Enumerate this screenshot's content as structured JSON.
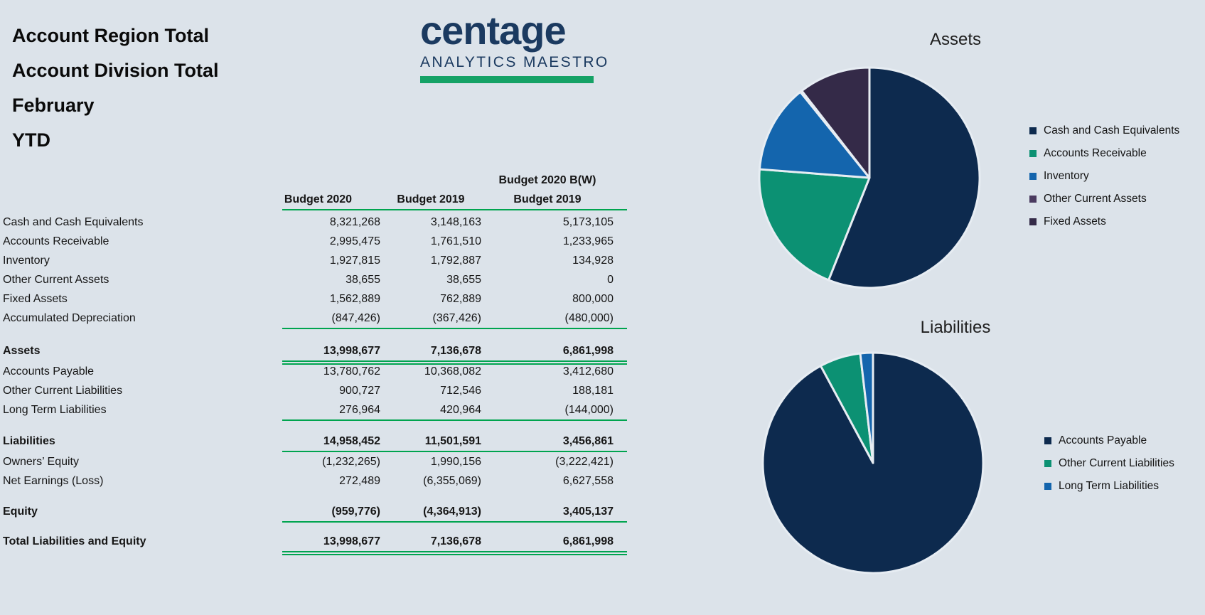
{
  "page": {
    "background": "#dce3ea"
  },
  "report": {
    "titles": [
      "Account Region Total",
      "Account Division Total",
      "February",
      "YTD"
    ]
  },
  "logo": {
    "brand": "centage",
    "subtitle": "ANALYTICS MAESTRO",
    "brand_color": "#1b3a60",
    "bar_color": "#15a266"
  },
  "table": {
    "rule_color": "#00a44f",
    "header": {
      "col1": "Budget 2020",
      "col2": "Budget 2019",
      "col3_line1": "Budget 2020 B(W)",
      "col3_line2": "Budget 2019"
    },
    "rows": [
      {
        "label": "Cash and Cash Equivalents",
        "budget_2020": "8,321,268",
        "budget_2019": "3,148,163",
        "bw_2019": "5,173,105",
        "bold": false,
        "rule_below": "none",
        "gap_before": 0
      },
      {
        "label": "Accounts Receivable",
        "budget_2020": "2,995,475",
        "budget_2019": "1,761,510",
        "bw_2019": "1,233,965",
        "bold": false,
        "rule_below": "none",
        "gap_before": 0
      },
      {
        "label": "Inventory",
        "budget_2020": "1,927,815",
        "budget_2019": "1,792,887",
        "bw_2019": "134,928",
        "bold": false,
        "rule_below": "none",
        "gap_before": 0
      },
      {
        "label": "Other Current Assets",
        "budget_2020": "38,655",
        "budget_2019": "38,655",
        "bw_2019": "0",
        "bold": false,
        "rule_below": "none",
        "gap_before": 0
      },
      {
        "label": "Fixed Assets",
        "budget_2020": "1,562,889",
        "budget_2019": "762,889",
        "bw_2019": "800,000",
        "bold": false,
        "rule_below": "none",
        "gap_before": 0
      },
      {
        "label": "Accumulated Depreciation",
        "budget_2020": "(847,426)",
        "budget_2019": "(367,426)",
        "bw_2019": "(480,000)",
        "bold": false,
        "rule_below": "single",
        "gap_before": 0
      },
      {
        "label": "Assets",
        "budget_2020": "13,998,677",
        "budget_2019": "7,136,678",
        "bw_2019": "6,861,998",
        "bold": true,
        "rule_below": "double",
        "gap_before": 19
      },
      {
        "label": "Accounts Payable",
        "budget_2020": "13,780,762",
        "budget_2019": "10,368,082",
        "bw_2019": "3,412,680",
        "bold": false,
        "rule_below": "none",
        "gap_before": 2
      },
      {
        "label": "Other Current Liabilities",
        "budget_2020": "900,727",
        "budget_2019": "712,546",
        "bw_2019": "188,181",
        "bold": false,
        "rule_below": "none",
        "gap_before": 0
      },
      {
        "label": "Long Term Liabilities",
        "budget_2020": "276,964",
        "budget_2019": "420,964",
        "bw_2019": "(144,000)",
        "bold": false,
        "rule_below": "single",
        "gap_before": 0
      },
      {
        "label": "Liabilities",
        "budget_2020": "14,958,452",
        "budget_2019": "11,501,591",
        "bw_2019": "3,456,861",
        "bold": true,
        "rule_below": "single",
        "gap_before": 17
      },
      {
        "label": "Owners’ Equity",
        "budget_2020": "(1,232,265)",
        "budget_2019": "1,990,156",
        "bw_2019": "(3,222,421)",
        "bold": false,
        "rule_below": "none",
        "gap_before": 2
      },
      {
        "label": "Net Earnings (Loss)",
        "budget_2020": "272,489",
        "budget_2019": "(6,355,069)",
        "bw_2019": "6,627,558",
        "bold": false,
        "rule_below": "none",
        "gap_before": 0
      },
      {
        "label": "Equity",
        "budget_2020": "(959,776)",
        "budget_2019": "(4,364,913)",
        "bw_2019": "3,405,137",
        "bold": true,
        "rule_below": "single",
        "gap_before": 16
      },
      {
        "label": "Total Liabilities and Equity",
        "budget_2020": "13,998,677",
        "budget_2019": "7,136,678",
        "bw_2019": "6,861,998",
        "bold": true,
        "rule_below": "double",
        "gap_before": 15
      }
    ]
  },
  "chart_data": [
    {
      "type": "pie",
      "title": "Assets",
      "labels": [
        "Cash and Cash Equivalents",
        "Accounts Receivable",
        "Inventory",
        "Other Current Assets",
        "Fixed Assets"
      ],
      "values": [
        8321268,
        2995475,
        1927815,
        38655,
        1562889
      ],
      "colors": [
        "#0d2a4e",
        "#0c9173",
        "#1465ad",
        "#4a3a5f",
        "#342a48"
      ],
      "legend_position": "right",
      "start_angle_deg": 0,
      "direction": "clockwise"
    },
    {
      "type": "pie",
      "title": "Liabilities",
      "labels": [
        "Accounts Payable",
        "Other Current Liabilities",
        "Long Term Liabilities"
      ],
      "values": [
        13780762,
        900727,
        276964
      ],
      "colors": [
        "#0d2a4e",
        "#0c9173",
        "#1465ad"
      ],
      "legend_position": "right",
      "start_angle_deg": 0,
      "direction": "clockwise"
    }
  ]
}
